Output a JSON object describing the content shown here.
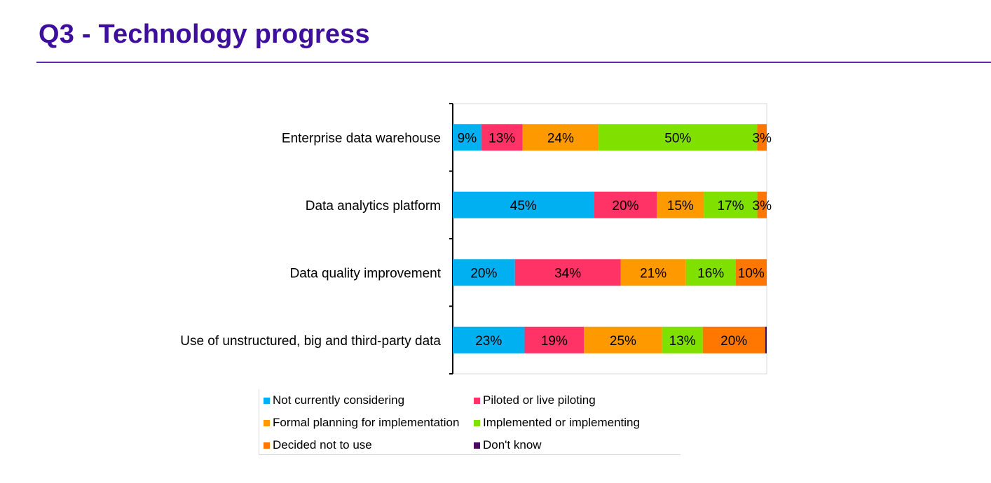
{
  "page": {
    "title": "Q3 - Technology progress"
  },
  "chart_data": {
    "type": "bar",
    "orientation": "horizontal",
    "stacked": true,
    "categories": [
      "Enterprise data warehouse",
      "Data analytics platform",
      "Data quality improvement",
      "Use of unstructured, big and third-party data"
    ],
    "series": [
      {
        "name": "Not currently considering",
        "color": "#00b0f0",
        "values": [
          9,
          45,
          20,
          23
        ]
      },
      {
        "name": "Piloted or live piloting",
        "color": "#ff3366",
        "values": [
          13,
          20,
          34,
          19
        ]
      },
      {
        "name": "Formal planning for implementation",
        "color": "#ff9900",
        "values": [
          24,
          15,
          21,
          25
        ]
      },
      {
        "name": "Implemented or implementing",
        "color": "#80e000",
        "values": [
          50,
          17,
          16,
          13
        ]
      },
      {
        "name": "Decided not to use",
        "color": "#ff7700",
        "values": [
          3,
          3,
          10,
          20
        ]
      },
      {
        "name": "Don't know",
        "color": "#4b0b5b",
        "values": [
          0,
          0,
          0,
          0.5
        ]
      }
    ],
    "data_labels": [
      [
        "9%",
        "45%",
        "20%",
        "23%"
      ],
      [
        "13%",
        "20%",
        "34%",
        "19%"
      ],
      [
        "24%",
        "15%",
        "21%",
        "25%"
      ],
      [
        "50%",
        "17%",
        "16%",
        "13%"
      ],
      [
        "3%",
        "3%",
        "10%",
        "20%"
      ],
      [
        "",
        "",
        "",
        ""
      ]
    ],
    "xlim": [
      0,
      100
    ],
    "grid": false,
    "legend_position": "bottom"
  }
}
